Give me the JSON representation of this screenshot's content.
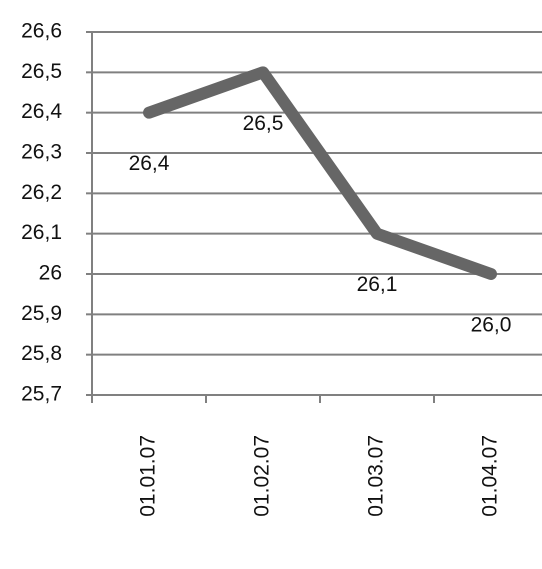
{
  "chart_data": {
    "type": "line",
    "categories": [
      "01.01.07",
      "01.02.07",
      "01.03.07",
      "01.04.07"
    ],
    "values": [
      26.4,
      26.5,
      26.1,
      26.0
    ],
    "value_labels": [
      "26,4",
      "26,5",
      "26,1",
      "26,0"
    ],
    "color": "#666666",
    "ylim": [
      25.7,
      26.6
    ],
    "yticks": [
      {
        "value": 25.7,
        "label": "25,7"
      },
      {
        "value": 25.8,
        "label": "25,8"
      },
      {
        "value": 25.9,
        "label": "25,9"
      },
      26,
      {
        "value": 26.1,
        "label": "26,1"
      },
      {
        "value": 26.2,
        "label": "26,2"
      },
      {
        "value": 26.3,
        "label": "26,3"
      },
      {
        "value": 26.4,
        "label": "26,4"
      },
      {
        "value": 26.5,
        "label": "26,5"
      },
      {
        "value": 26.6,
        "label": "26,6"
      }
    ],
    "grid": true
  }
}
